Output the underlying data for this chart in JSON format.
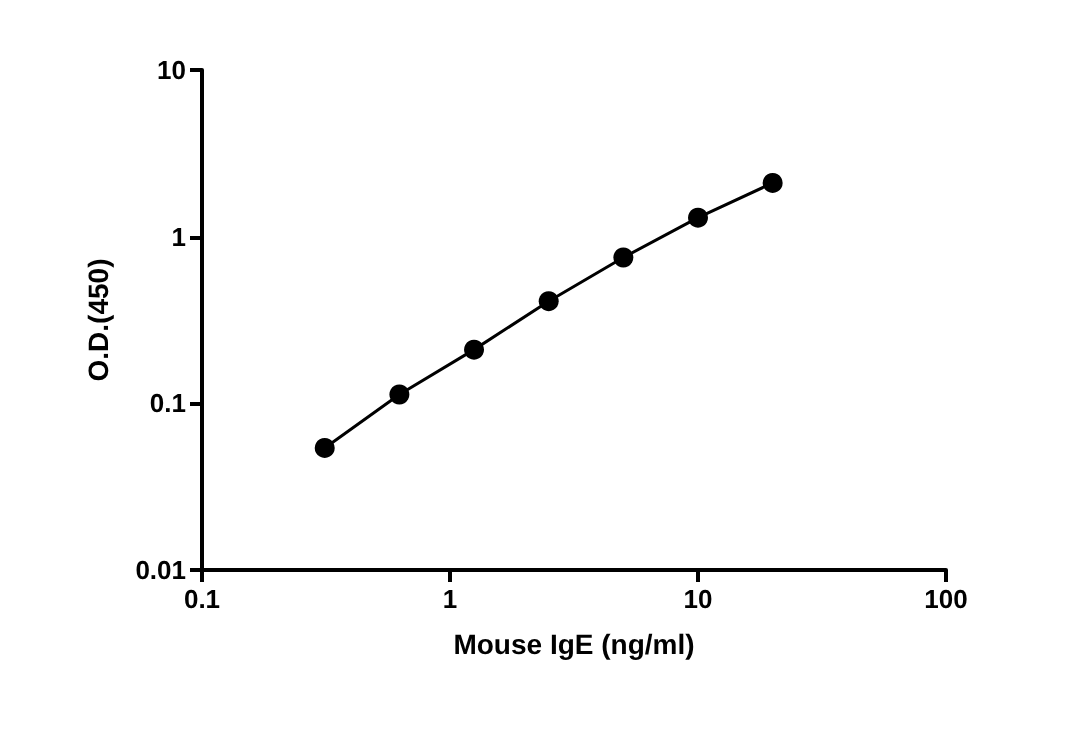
{
  "chart_data": {
    "type": "line",
    "xlabel": "Mouse IgE (ng/ml)",
    "ylabel": "O.D.(450)",
    "log": "xy",
    "x": [
      0.3125,
      0.625,
      1.25,
      2.5,
      5,
      10,
      20
    ],
    "series": [
      {
        "color": "#000000",
        "values": [
          0.054,
          0.113,
          0.21,
          0.41,
          0.75,
          1.3,
          2.1
        ]
      }
    ],
    "xlim": [
      0.1,
      100
    ],
    "xticks": [
      0.1,
      1,
      10,
      100
    ],
    "ylim": [
      0.01,
      10
    ],
    "yticks": [
      0.01,
      0.1,
      1,
      10
    ],
    "grid": false,
    "marker": "circle",
    "line_style": "solid"
  }
}
